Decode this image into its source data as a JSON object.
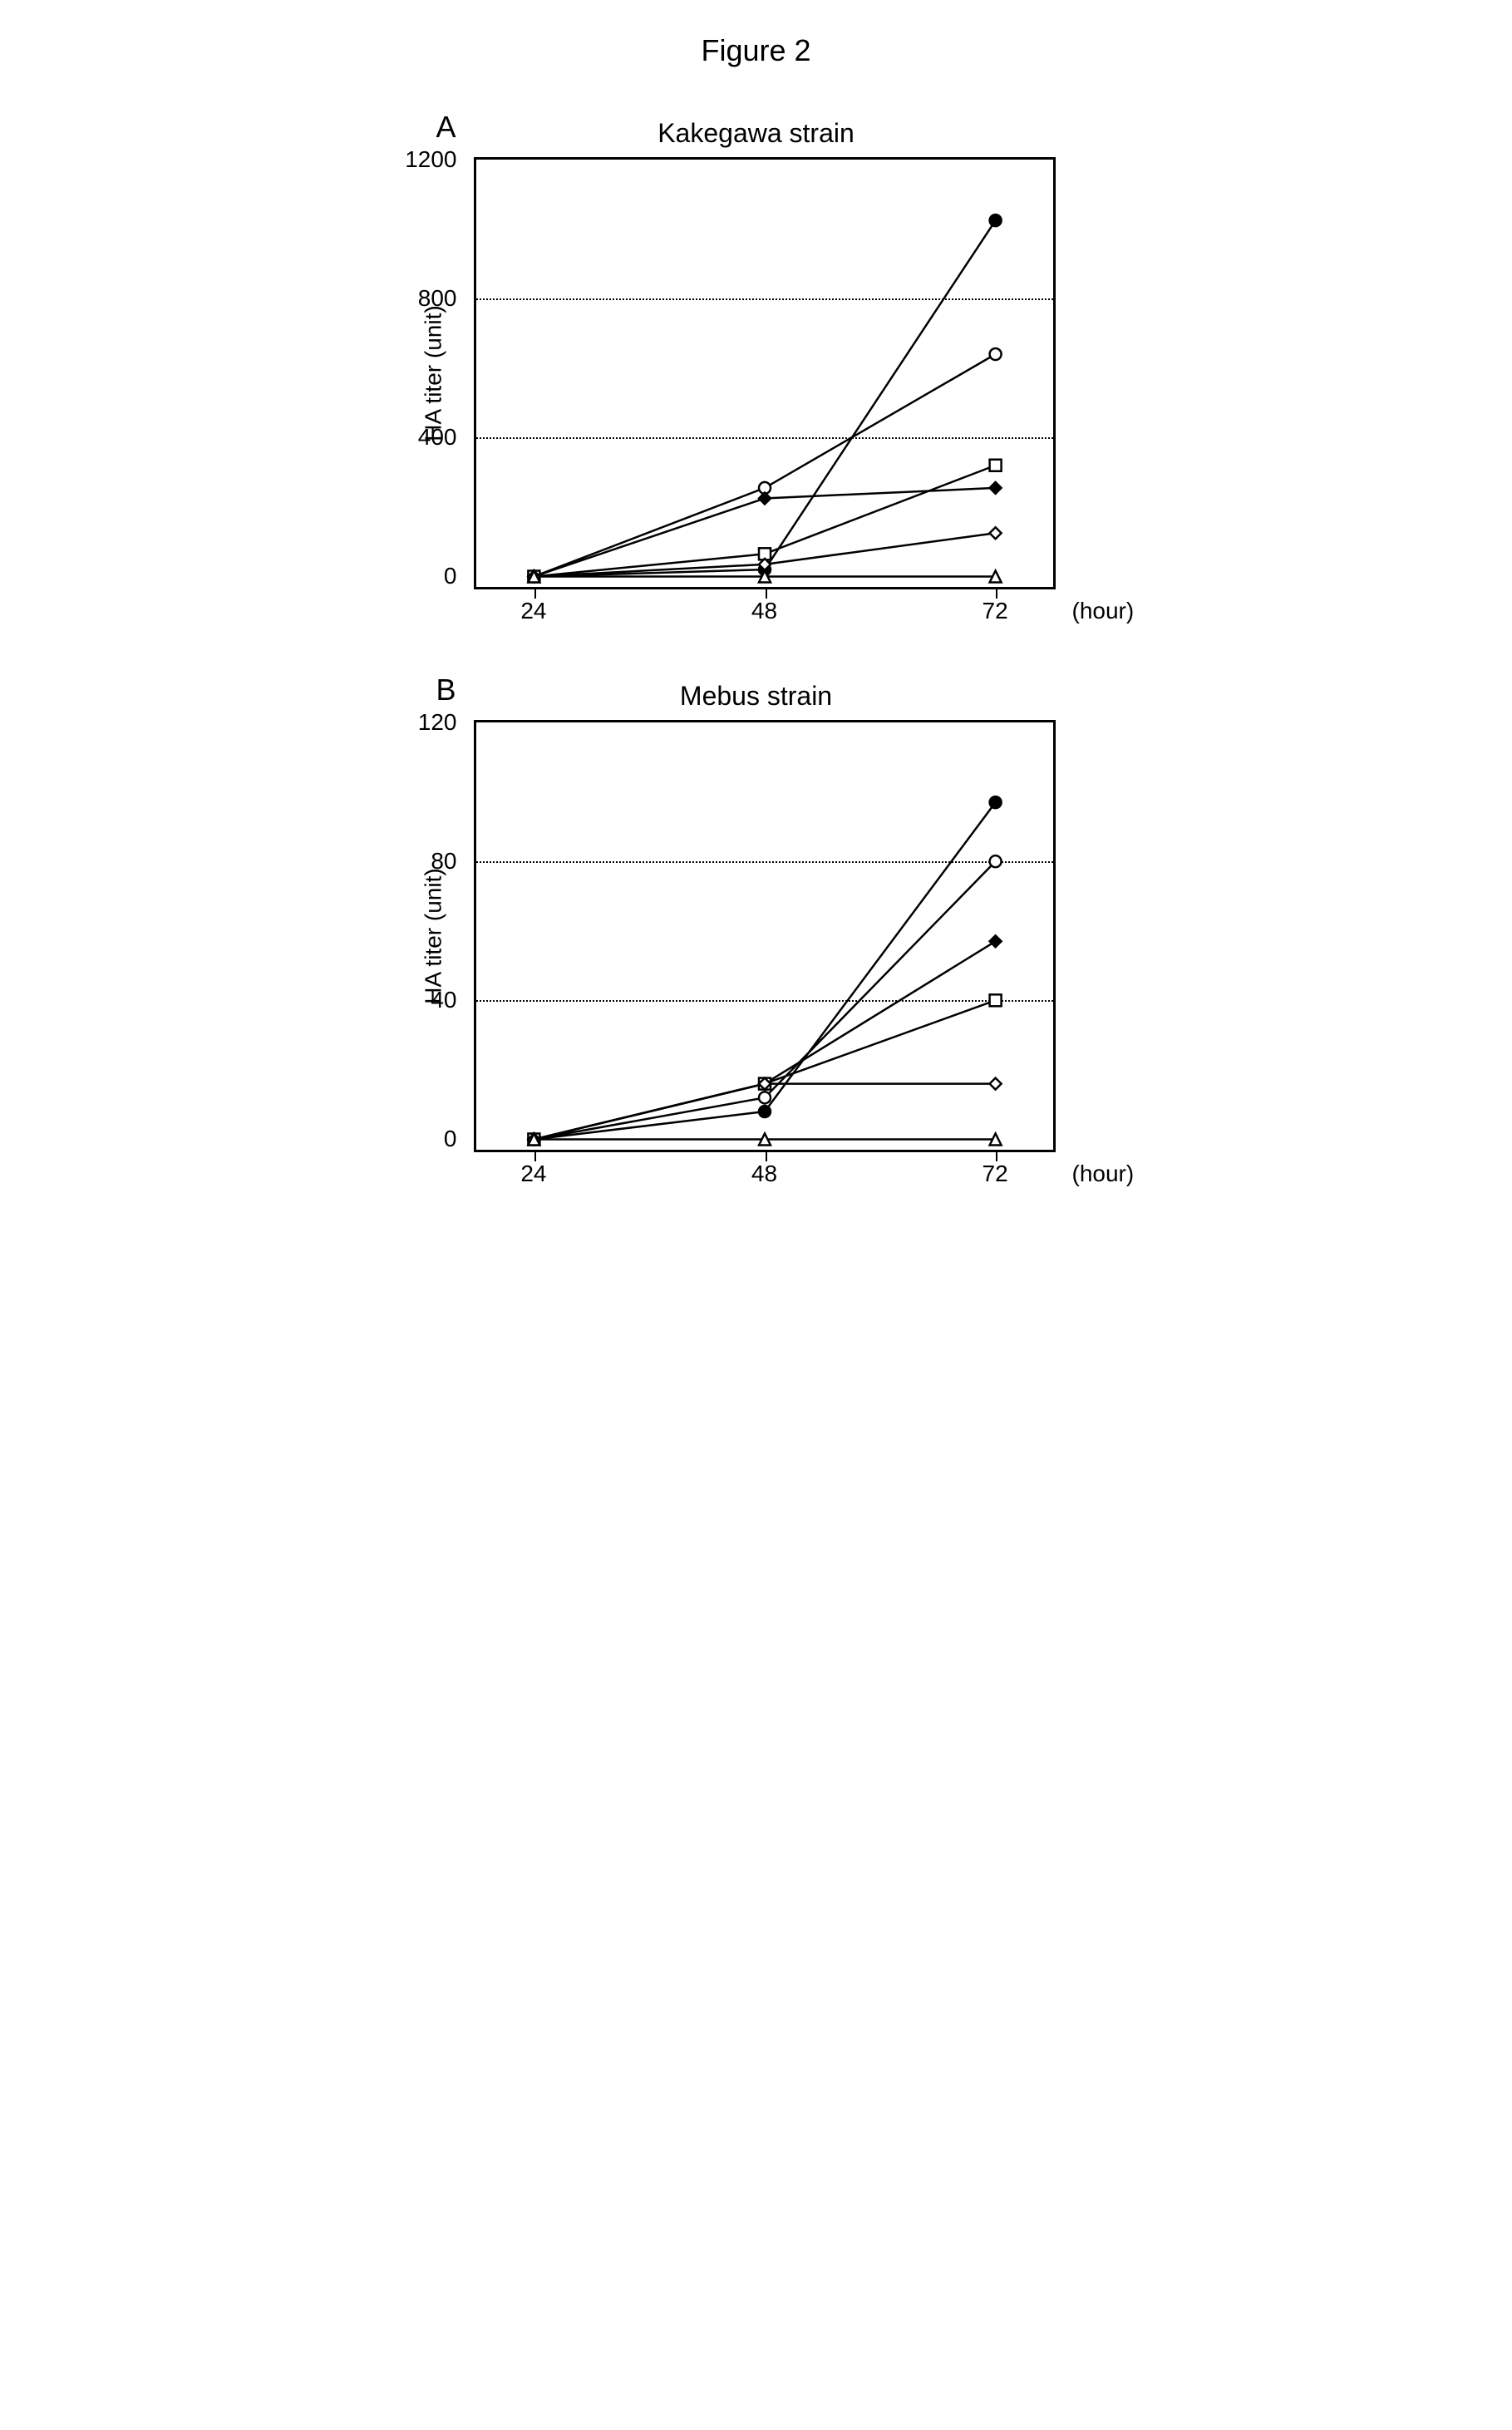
{
  "figure_title": "Figure 2",
  "colors": {
    "background": "#ffffff",
    "axis": "#000000",
    "grid": "#000000",
    "line": "#000000",
    "text": "#000000"
  },
  "fonts": {
    "title_size": 36,
    "chart_title_size": 32,
    "axis_label_size": 28,
    "tick_label_size": 28
  },
  "line_width": 2.5,
  "marker_size": 7,
  "x_values": [
    24,
    48,
    72
  ],
  "markers": {
    "filled_circle": {
      "shape": "circle",
      "fill": "#000000",
      "stroke": "#000000"
    },
    "open_circle": {
      "shape": "circle",
      "fill": "#ffffff",
      "stroke": "#000000"
    },
    "open_square": {
      "shape": "square",
      "fill": "#ffffff",
      "stroke": "#000000"
    },
    "filled_diamond": {
      "shape": "diamond",
      "fill": "#000000",
      "stroke": "#000000"
    },
    "open_diamond": {
      "shape": "diamond",
      "fill": "#ffffff",
      "stroke": "#000000"
    },
    "open_triangle": {
      "shape": "triangle",
      "fill": "#ffffff",
      "stroke": "#000000"
    }
  },
  "panels": [
    {
      "id": "A",
      "label": "A",
      "title": "Kakegawa strain",
      "ylabel": "HA titer (unit)",
      "xlabel": "(hour)",
      "xlim": [
        18,
        78
      ],
      "ylim": [
        -30,
        1200
      ],
      "xticks": [
        24,
        48,
        72
      ],
      "yticks": [
        0,
        400,
        800,
        1200
      ],
      "grid_y": [
        400,
        800
      ],
      "series": [
        {
          "marker": "filled_circle",
          "y": [
            0,
            20,
            1025
          ]
        },
        {
          "marker": "open_circle",
          "y": [
            0,
            255,
            640
          ]
        },
        {
          "marker": "filled_diamond",
          "y": [
            0,
            225,
            255
          ]
        },
        {
          "marker": "open_square",
          "y": [
            0,
            65,
            320
          ]
        },
        {
          "marker": "open_diamond",
          "y": [
            0,
            35,
            125
          ]
        },
        {
          "marker": "open_triangle",
          "y": [
            0,
            0,
            0
          ]
        }
      ]
    },
    {
      "id": "B",
      "label": "B",
      "title": "Mebus strain",
      "ylabel": "HA titer (unit)",
      "xlabel": "(hour)",
      "xlim": [
        18,
        78
      ],
      "ylim": [
        -3,
        120
      ],
      "xticks": [
        24,
        48,
        72
      ],
      "yticks": [
        0,
        40,
        80,
        120
      ],
      "grid_y": [
        40,
        80
      ],
      "series": [
        {
          "marker": "filled_circle",
          "y": [
            0,
            8,
            97
          ]
        },
        {
          "marker": "open_circle",
          "y": [
            0,
            12,
            80
          ]
        },
        {
          "marker": "filled_diamond",
          "y": [
            0,
            16,
            57
          ]
        },
        {
          "marker": "open_square",
          "y": [
            0,
            16,
            40
          ]
        },
        {
          "marker": "open_diamond",
          "y": [
            0,
            16,
            16
          ]
        },
        {
          "marker": "open_triangle",
          "y": [
            0,
            0,
            0
          ]
        }
      ]
    }
  ]
}
